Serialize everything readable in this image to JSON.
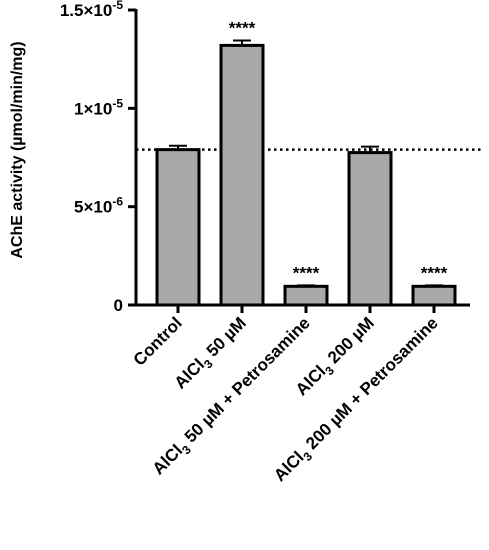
{
  "chart_data": {
    "type": "bar",
    "ylabel": "AChE activity (µmol/min/mg)",
    "ylim": [
      0,
      1.5e-05
    ],
    "y_ticks": [
      0,
      5e-06,
      1e-05,
      1.5e-05
    ],
    "y_tick_labels": [
      {
        "base": "0",
        "exp": ""
      },
      {
        "base": "5×10",
        "exp": "-6"
      },
      {
        "base": "1×10",
        "exp": "-5"
      },
      {
        "base": "1.5×10",
        "exp": "-5"
      }
    ],
    "categories": [
      {
        "prefix": "Control",
        "sub": "",
        "suffix": ""
      },
      {
        "prefix": "AlCl",
        "sub": "3",
        "suffix": " 50 µM"
      },
      {
        "prefix": "AlCl",
        "sub": "3",
        "suffix": " 50 µM + Petrosamine"
      },
      {
        "prefix": "AlCl",
        "sub": "3",
        "suffix": " 200 µM"
      },
      {
        "prefix": "AlCl",
        "sub": "3",
        "suffix": " 200 µM + Petrosamine"
      }
    ],
    "values": [
      7.9e-06,
      1.32e-05,
      9.5e-07,
      7.75e-06,
      9.5e-07
    ],
    "errors": [
      2e-07,
      2.5e-07,
      5e-08,
      3e-07,
      5e-08
    ],
    "significance": [
      "",
      "****",
      "****",
      "",
      "****"
    ],
    "reference_line": 7.9e-06,
    "colors": {
      "bar_fill": "#a9a9a9",
      "bar_stroke": "#000000",
      "axis": "#000000"
    },
    "grid": false
  }
}
